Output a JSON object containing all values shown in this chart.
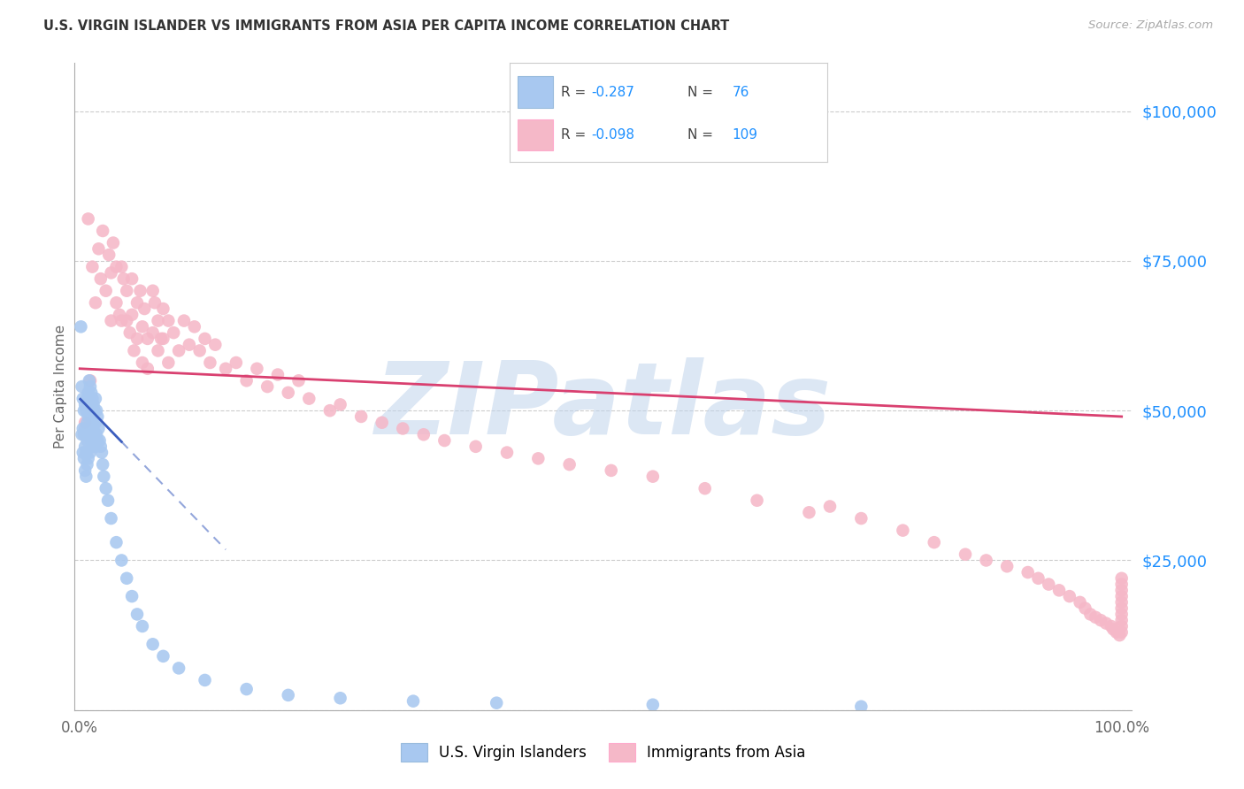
{
  "title": "U.S. VIRGIN ISLANDER VS IMMIGRANTS FROM ASIA PER CAPITA INCOME CORRELATION CHART",
  "source": "Source: ZipAtlas.com",
  "ylabel": "Per Capita Income",
  "x_min": 0.0,
  "x_max": 100.0,
  "y_min": 0,
  "y_max": 108000,
  "ytick_vals": [
    0,
    25000,
    50000,
    75000,
    100000
  ],
  "ytick_labels_right": [
    "$25,000",
    "$50,000",
    "$75,000",
    "$100,000"
  ],
  "blue_R": -0.287,
  "blue_N": 76,
  "pink_R": -0.098,
  "pink_N": 109,
  "blue_color": "#A8C8F0",
  "pink_color": "#F5B8C8",
  "blue_line_color": "#3B5DBE",
  "pink_line_color": "#D94070",
  "blue_scatter_x": [
    0.1,
    0.2,
    0.2,
    0.3,
    0.3,
    0.3,
    0.4,
    0.4,
    0.4,
    0.5,
    0.5,
    0.5,
    0.5,
    0.6,
    0.6,
    0.6,
    0.6,
    0.7,
    0.7,
    0.7,
    0.7,
    0.8,
    0.8,
    0.8,
    0.8,
    0.9,
    0.9,
    0.9,
    1.0,
    1.0,
    1.0,
    1.0,
    1.1,
    1.1,
    1.1,
    1.2,
    1.2,
    1.2,
    1.3,
    1.3,
    1.3,
    1.4,
    1.4,
    1.5,
    1.5,
    1.5,
    1.6,
    1.6,
    1.7,
    1.7,
    1.8,
    1.9,
    2.0,
    2.1,
    2.2,
    2.3,
    2.5,
    2.7,
    3.0,
    3.5,
    4.0,
    4.5,
    5.0,
    5.5,
    6.0,
    7.0,
    8.0,
    9.5,
    12.0,
    16.0,
    20.0,
    25.0,
    32.0,
    40.0,
    55.0,
    75.0
  ],
  "blue_scatter_y": [
    64000,
    54000,
    46000,
    52000,
    47000,
    43000,
    50000,
    46000,
    42000,
    51000,
    47000,
    44000,
    40000,
    50000,
    46000,
    43000,
    39000,
    52000,
    48000,
    45000,
    41000,
    53000,
    49000,
    46000,
    42000,
    55000,
    51000,
    47000,
    54000,
    50000,
    46000,
    43000,
    53000,
    49000,
    45000,
    52000,
    48000,
    44000,
    51000,
    47000,
    44000,
    50000,
    46000,
    52000,
    48000,
    44000,
    50000,
    46000,
    49000,
    45000,
    47000,
    45000,
    44000,
    43000,
    41000,
    39000,
    37000,
    35000,
    32000,
    28000,
    25000,
    22000,
    19000,
    16000,
    14000,
    11000,
    9000,
    7000,
    5000,
    3500,
    2500,
    2000,
    1500,
    1200,
    900,
    600
  ],
  "pink_scatter_x": [
    0.5,
    0.8,
    1.0,
    1.2,
    1.5,
    1.8,
    2.0,
    2.2,
    2.5,
    2.8,
    3.0,
    3.0,
    3.2,
    3.5,
    3.5,
    3.8,
    4.0,
    4.0,
    4.2,
    4.5,
    4.5,
    4.8,
    5.0,
    5.0,
    5.2,
    5.5,
    5.5,
    5.8,
    6.0,
    6.0,
    6.2,
    6.5,
    6.5,
    7.0,
    7.0,
    7.2,
    7.5,
    7.5,
    7.8,
    8.0,
    8.0,
    8.5,
    8.5,
    9.0,
    9.5,
    10.0,
    10.5,
    11.0,
    11.5,
    12.0,
    12.5,
    13.0,
    14.0,
    15.0,
    16.0,
    17.0,
    18.0,
    19.0,
    20.0,
    21.0,
    22.0,
    24.0,
    25.0,
    27.0,
    29.0,
    31.0,
    33.0,
    35.0,
    38.0,
    41.0,
    44.0,
    47.0,
    51.0,
    55.0,
    60.0,
    65.0,
    70.0,
    72.0,
    75.0,
    79.0,
    82.0,
    85.0,
    87.0,
    89.0,
    91.0,
    92.0,
    93.0,
    94.0,
    95.0,
    96.0,
    96.5,
    97.0,
    97.5,
    98.0,
    98.5,
    99.0,
    99.2,
    99.5,
    99.8,
    100.0,
    100.0,
    100.0,
    100.0,
    100.0,
    100.0,
    100.0,
    100.0,
    100.0,
    100.0
  ],
  "pink_scatter_y": [
    48000,
    82000,
    55000,
    74000,
    68000,
    77000,
    72000,
    80000,
    70000,
    76000,
    73000,
    65000,
    78000,
    68000,
    74000,
    66000,
    74000,
    65000,
    72000,
    65000,
    70000,
    63000,
    72000,
    66000,
    60000,
    68000,
    62000,
    70000,
    64000,
    58000,
    67000,
    62000,
    57000,
    70000,
    63000,
    68000,
    65000,
    60000,
    62000,
    67000,
    62000,
    65000,
    58000,
    63000,
    60000,
    65000,
    61000,
    64000,
    60000,
    62000,
    58000,
    61000,
    57000,
    58000,
    55000,
    57000,
    54000,
    56000,
    53000,
    55000,
    52000,
    50000,
    51000,
    49000,
    48000,
    47000,
    46000,
    45000,
    44000,
    43000,
    42000,
    41000,
    40000,
    39000,
    37000,
    35000,
    33000,
    34000,
    32000,
    30000,
    28000,
    26000,
    25000,
    24000,
    23000,
    22000,
    21000,
    20000,
    19000,
    18000,
    17000,
    16000,
    15500,
    15000,
    14500,
    14000,
    13500,
    13000,
    12500,
    22000,
    21000,
    20000,
    19000,
    18000,
    17000,
    16000,
    15000,
    14000,
    13000
  ],
  "watermark_text": "ZIPatlas",
  "watermark_color": "#C0D4EC",
  "background_color": "#FFFFFF",
  "grid_color": "#CCCCCC",
  "axis_label_color": "#666666",
  "right_tick_color": "#1E90FF",
  "blue_line_intercept": 52000,
  "blue_line_slope": -1800,
  "pink_line_intercept": 57000,
  "pink_line_slope": -80
}
